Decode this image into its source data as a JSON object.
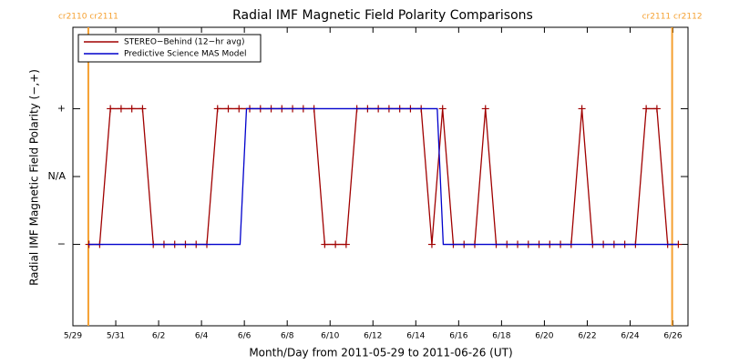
{
  "chart_data": {
    "type": "line",
    "title": "Radial IMF Magnetic Field Polarity Comparisons",
    "xlabel": "Month/Day from 2011-05-29 to 2011-06-26 (UT)",
    "ylabel": "Radial IMF Magnetic Field Polarity (−,+)",
    "xlim": [
      0,
      28.7
    ],
    "xticks": [
      {
        "value": 0,
        "label": "5/29"
      },
      {
        "value": 2,
        "label": "5/31"
      },
      {
        "value": 4,
        "label": "6/2"
      },
      {
        "value": 6,
        "label": "6/4"
      },
      {
        "value": 8,
        "label": "6/6"
      },
      {
        "value": 10,
        "label": "6/8"
      },
      {
        "value": 12,
        "label": "6/10"
      },
      {
        "value": 14,
        "label": "6/12"
      },
      {
        "value": 16,
        "label": "6/14"
      },
      {
        "value": 18,
        "label": "6/16"
      },
      {
        "value": 20,
        "label": "6/18"
      },
      {
        "value": 22,
        "label": "6/20"
      },
      {
        "value": 24,
        "label": "6/22"
      },
      {
        "value": 26,
        "label": "6/24"
      },
      {
        "value": 28,
        "label": "6/26"
      }
    ],
    "ylim": [
      -2.2,
      2.2
    ],
    "yticks": [
      {
        "value": 1,
        "label": "+"
      },
      {
        "value": 0,
        "label": "N/A"
      },
      {
        "value": -1,
        "label": "−"
      }
    ],
    "legend": "top-left",
    "annotations": [
      {
        "text": "cr2110 cr2111",
        "x": 0.72,
        "color": "#f5a030"
      },
      {
        "text": "cr2111 cr2112",
        "x": 27.96,
        "color": "#f5a030"
      }
    ],
    "series": [
      {
        "name": "STEREO−Behind (12−hr avg)",
        "color": "#a00000",
        "markers": true,
        "x": [
          0.75,
          1.25,
          1.75,
          2.25,
          2.75,
          3.25,
          3.75,
          4.25,
          4.75,
          5.25,
          5.75,
          6.25,
          6.75,
          7.25,
          7.75,
          8.25,
          8.75,
          9.25,
          9.75,
          10.25,
          10.75,
          11.25,
          11.75,
          12.25,
          12.75,
          13.25,
          13.75,
          14.25,
          14.75,
          15.25,
          15.75,
          16.25,
          16.75,
          17.25,
          17.75,
          18.25,
          18.75,
          19.25,
          19.75,
          20.25,
          20.75,
          21.25,
          21.75,
          22.25,
          22.75,
          23.25,
          23.75,
          24.25,
          24.75,
          25.25,
          25.75,
          26.25,
          26.75,
          27.25,
          27.75,
          28.25
        ],
        "values": [
          -1,
          -1,
          1,
          1,
          1,
          1,
          -1,
          -1,
          -1,
          -1,
          -1,
          -1,
          1,
          1,
          1,
          1,
          1,
          1,
          1,
          1,
          1,
          1,
          -1,
          -1,
          -1,
          1,
          1,
          1,
          1,
          1,
          1,
          1,
          -1,
          1,
          -1,
          -1,
          -1,
          1,
          -1,
          -1,
          -1,
          -1,
          -1,
          -1,
          -1,
          -1,
          1,
          -1,
          -1,
          -1,
          -1,
          -1,
          1,
          1,
          -1,
          -1
        ]
      },
      {
        "name": "Predictive Science MAS Model",
        "color": "#0000cc",
        "markers": false,
        "x": [
          0.72,
          7.8,
          8.1,
          17.0,
          17.28,
          28.2
        ],
        "values": [
          -1,
          -1,
          1,
          1,
          -1,
          -1
        ]
      }
    ]
  }
}
